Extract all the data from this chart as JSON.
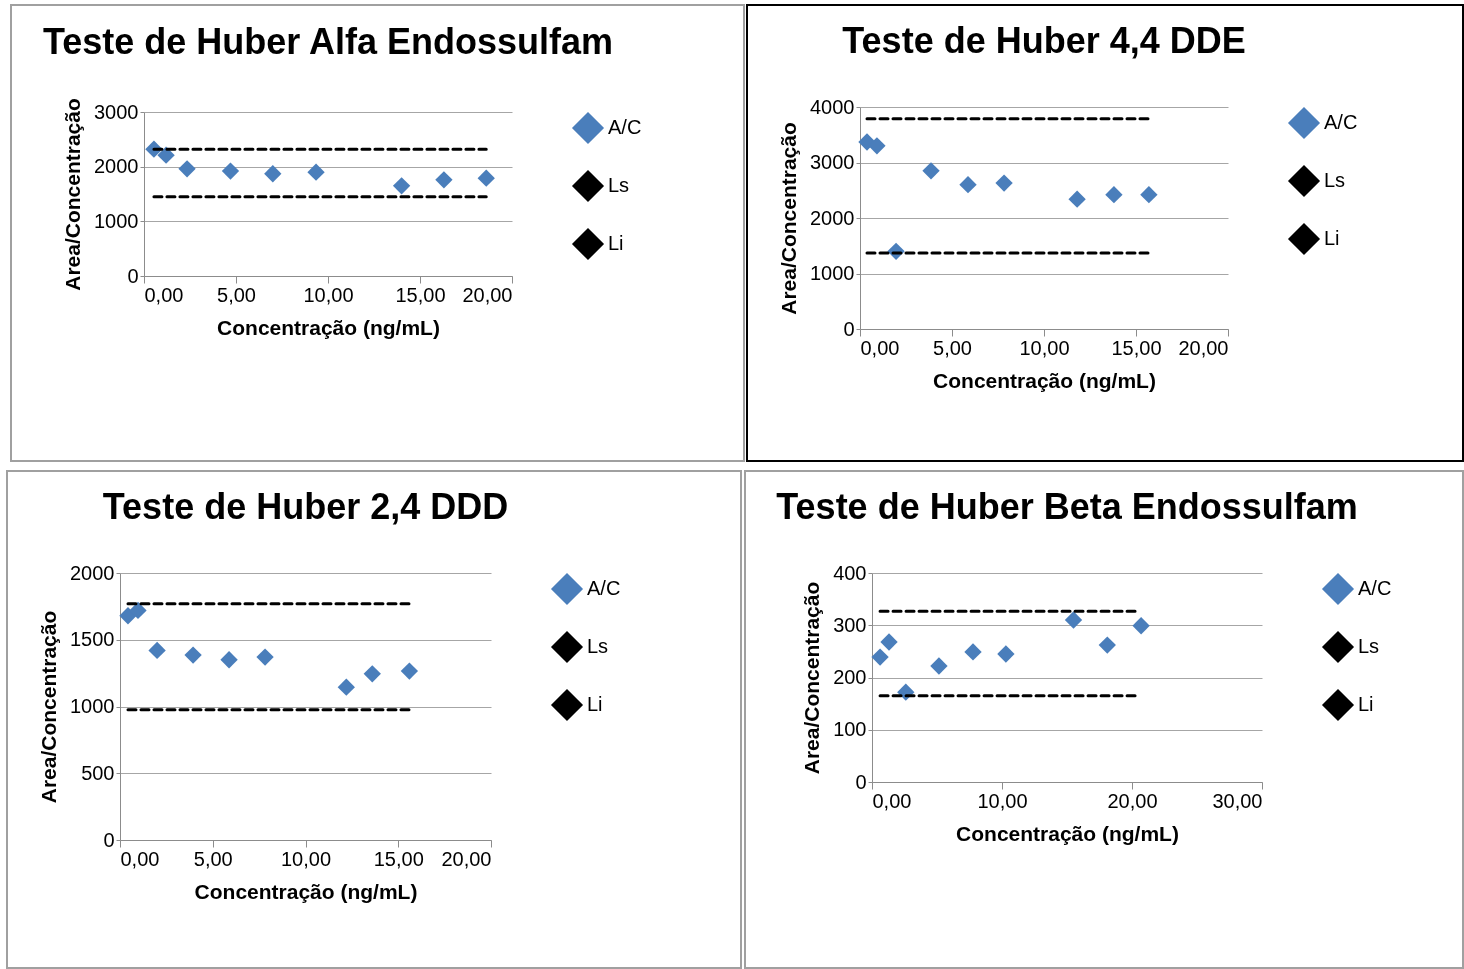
{
  "chart_data": [
    {
      "type": "scatter",
      "title": "Teste de Huber Alfa Endossulfam",
      "xlabel": "Concentração (ng/mL)",
      "ylabel": "Area/Concentração",
      "xlim": [
        0,
        20
      ],
      "xticks": [
        {
          "value": 0,
          "label": "0,00"
        },
        {
          "value": 5,
          "label": "5,00"
        },
        {
          "value": 10,
          "label": "10,00"
        },
        {
          "value": 15,
          "label": "15,00"
        },
        {
          "value": 20,
          "label": "20,00"
        }
      ],
      "ylim": [
        0,
        3000
      ],
      "yticks": [
        0,
        1000,
        2000,
        3000
      ],
      "grid": "y",
      "legend": "right",
      "series": [
        {
          "name": "A/C",
          "color": "#4a7ebb",
          "marker": "diamond",
          "x": [
            0.54,
            1.2,
            2.34,
            4.7,
            7.0,
            9.35,
            14.0,
            16.3,
            18.6
          ],
          "values": [
            2320,
            2210,
            1960,
            1920,
            1870,
            1900,
            1650,
            1760,
            1790
          ]
        },
        {
          "name": "Ls",
          "type": "line",
          "color": "#000000",
          "line_style": "dashed",
          "marker": "none",
          "x": [
            0.54,
            18.6
          ],
          "values": [
            2320,
            2320
          ]
        },
        {
          "name": "Li",
          "type": "line",
          "color": "#000000",
          "line_style": "dashed",
          "marker": "none",
          "x": [
            0.54,
            18.6
          ],
          "values": [
            1450,
            1450
          ]
        }
      ]
    },
    {
      "type": "scatter",
      "title": "Teste de Huber 4,4 DDE",
      "xlabel": "Concentração (ng/mL)",
      "ylabel": "Area/Concentração",
      "xlim": [
        0,
        20
      ],
      "xticks": [
        {
          "value": 0,
          "label": "0,00"
        },
        {
          "value": 5,
          "label": "5,00"
        },
        {
          "value": 10,
          "label": "10,00"
        },
        {
          "value": 15,
          "label": "15,00"
        },
        {
          "value": 20,
          "label": "20,00"
        }
      ],
      "ylim": [
        0,
        4000
      ],
      "yticks": [
        0,
        1000,
        2000,
        3000,
        4000
      ],
      "grid": "y",
      "legend": "right",
      "series": [
        {
          "name": "A/C",
          "color": "#4a7ebb",
          "marker": "diamond",
          "x": [
            0.38,
            0.92,
            1.96,
            3.86,
            5.87,
            7.83,
            11.8,
            13.8,
            15.7
          ],
          "values": [
            3370,
            3300,
            1400,
            2850,
            2600,
            2630,
            2340,
            2420,
            2420
          ]
        },
        {
          "name": "Ls",
          "type": "line",
          "color": "#000000",
          "line_style": "dashed",
          "marker": "none",
          "x": [
            0.38,
            15.7
          ],
          "values": [
            3790,
            3790
          ]
        },
        {
          "name": "Li",
          "type": "line",
          "color": "#000000",
          "line_style": "dashed",
          "marker": "none",
          "x": [
            0.38,
            15.7
          ],
          "values": [
            1370,
            1370
          ]
        }
      ]
    },
    {
      "type": "scatter",
      "title": "Teste de Huber 2,4 DDD",
      "xlabel": "Concentração (ng/mL)",
      "ylabel": "Area/Concentração",
      "xlim": [
        0,
        20
      ],
      "xticks": [
        {
          "value": 0,
          "label": "0,00"
        },
        {
          "value": 5,
          "label": "5,00"
        },
        {
          "value": 10,
          "label": "10,00"
        },
        {
          "value": 15,
          "label": "15,00"
        },
        {
          "value": 20,
          "label": "20,00"
        }
      ],
      "ylim": [
        0,
        2000
      ],
      "yticks": [
        0,
        500,
        1000,
        1500,
        2000
      ],
      "grid": "y",
      "legend": "right",
      "series": [
        {
          "name": "A/C",
          "color": "#4a7ebb",
          "marker": "diamond",
          "x": [
            0.43,
            0.97,
            2.0,
            3.94,
            5.88,
            7.82,
            12.2,
            13.6,
            15.6
          ],
          "values": [
            1680,
            1720,
            1420,
            1385,
            1350,
            1370,
            1145,
            1245,
            1265
          ]
        },
        {
          "name": "Ls",
          "type": "line",
          "color": "#000000",
          "line_style": "dashed",
          "marker": "none",
          "x": [
            0.43,
            15.6
          ],
          "values": [
            1770,
            1770
          ]
        },
        {
          "name": "Li",
          "type": "line",
          "color": "#000000",
          "line_style": "dashed",
          "marker": "none",
          "x": [
            0.43,
            15.6
          ],
          "values": [
            975,
            975
          ]
        }
      ]
    },
    {
      "type": "scatter",
      "title": "Teste de Huber Beta Endossulfam",
      "xlabel": "Concentração (ng/mL)",
      "ylabel": "Area/Concentração",
      "xlim": [
        0,
        30
      ],
      "xticks": [
        {
          "value": 0,
          "label": "0,00"
        },
        {
          "value": 10,
          "label": "10,00"
        },
        {
          "value": 20,
          "label": "20,00"
        },
        {
          "value": 30,
          "label": "30,00"
        }
      ],
      "ylim": [
        0,
        400
      ],
      "yticks": [
        0,
        100,
        200,
        300,
        400
      ],
      "grid": "y",
      "legend": "right",
      "series": [
        {
          "name": "A/C",
          "color": "#4a7ebb",
          "marker": "diamond",
          "x": [
            0.62,
            1.31,
            2.6,
            5.15,
            7.77,
            10.3,
            15.5,
            18.1,
            20.7
          ],
          "values": [
            239,
            268,
            172,
            222,
            249,
            245,
            310,
            262,
            299
          ]
        },
        {
          "name": "Ls",
          "type": "line",
          "color": "#000000",
          "line_style": "dashed",
          "marker": "none",
          "x": [
            0.62,
            20.5
          ],
          "values": [
            327,
            327
          ]
        },
        {
          "name": "Li",
          "type": "line",
          "color": "#000000",
          "line_style": "dashed",
          "marker": "none",
          "x": [
            0.62,
            20.5
          ],
          "values": [
            165,
            165
          ]
        }
      ]
    }
  ]
}
